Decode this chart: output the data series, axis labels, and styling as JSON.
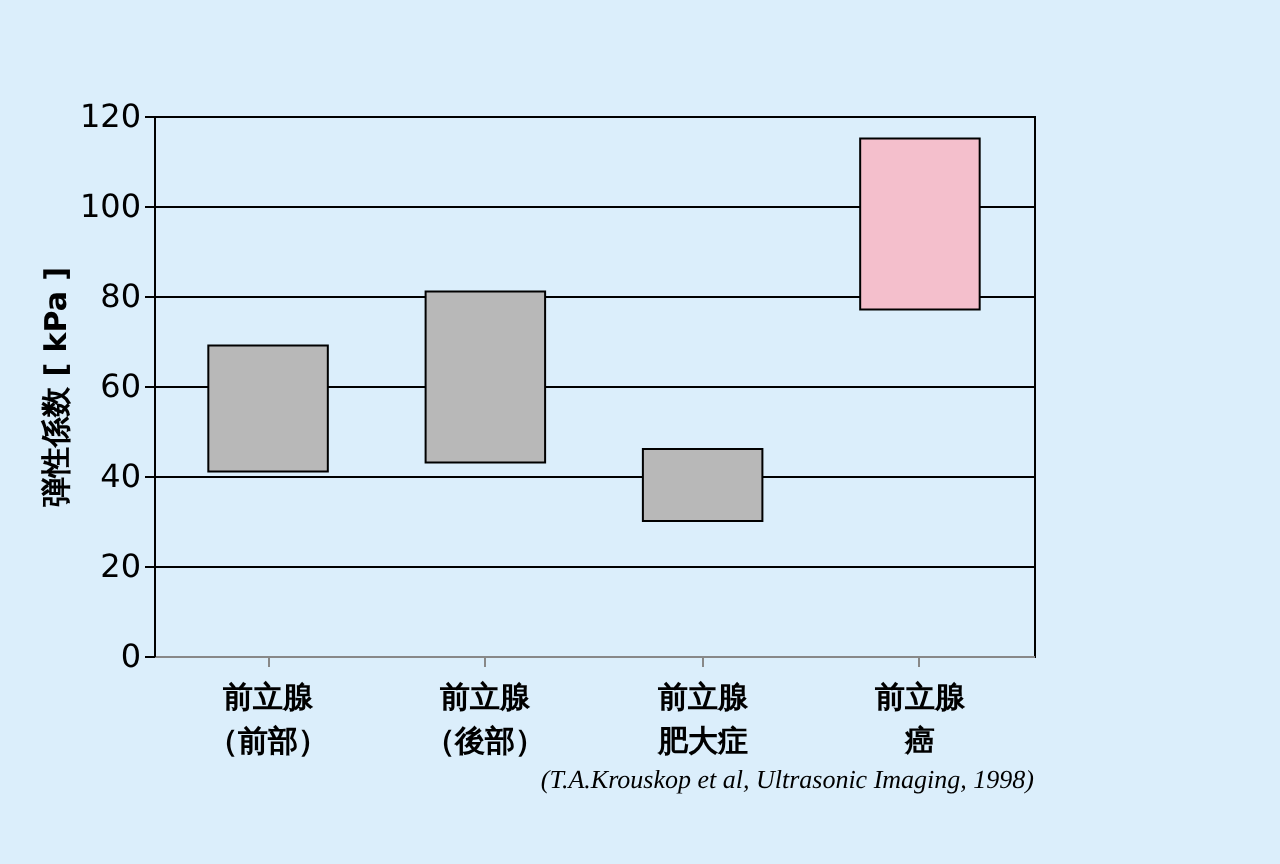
{
  "chart_data": {
    "type": "bar",
    "ylabel": "弾性係数 [ kPa ]",
    "categories": [
      "前立腺（前部）",
      "前立腺（後部）",
      "前立腺肥大症",
      "前立腺癌"
    ],
    "base": [
      41,
      43,
      30,
      77
    ],
    "values": [
      28,
      38,
      16,
      38
    ],
    "colors": [
      "#b8b8b8",
      "#b8b8b8",
      "#b8b8b8",
      "#f4bfcc"
    ],
    "ylim": [
      0,
      120
    ],
    "yticks": [
      0,
      20,
      40,
      60,
      80,
      100,
      120
    ],
    "grid": "y",
    "annotations": [
      "(T.A.Krouskop et al, Ultrasonic Imaging, 1998)"
    ]
  }
}
